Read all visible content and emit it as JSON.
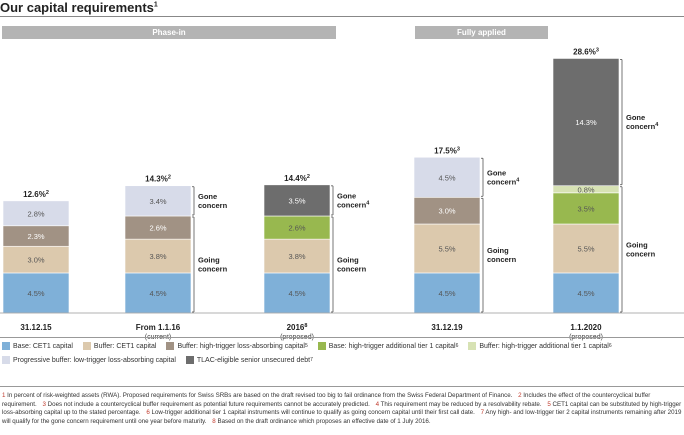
{
  "page": {
    "title": "Our capital requirements",
    "title_sup": "1"
  },
  "headers": {
    "phase_in": "Phase-in",
    "fully_applied": "Fully applied"
  },
  "chart_data": {
    "type": "bar",
    "stacked": true,
    "unit": "% of RWA",
    "categories": [
      "31.12.15",
      "From 1.1.16",
      "2016",
      "31.12.19",
      "1.1.2020"
    ],
    "category_sublabels": [
      "",
      "(current)",
      "(proposed)",
      "",
      "(proposed)"
    ],
    "category_sups": [
      "",
      "",
      "8",
      "",
      ""
    ],
    "totals": [
      {
        "label": "12.6%",
        "sup": "2"
      },
      {
        "label": "14.3%",
        "sup": "2"
      },
      {
        "label": "14.4%",
        "sup": "2"
      },
      {
        "label": "17.5%",
        "sup": "3"
      },
      {
        "label": "28.6%",
        "sup": "3"
      }
    ],
    "series": [
      {
        "name": "Base: CET1 capital",
        "color": "#7fb0d8",
        "values": [
          4.5,
          4.5,
          4.5,
          4.5,
          4.5
        ]
      },
      {
        "name": "Buffer: CET1 capital",
        "color": "#dcc9ad",
        "values": [
          3.0,
          3.8,
          3.8,
          5.5,
          5.5
        ]
      },
      {
        "name": "Buffer: high-trigger loss-absorbing capital",
        "sup": "5",
        "color": "#a19284",
        "values": [
          2.3,
          2.6,
          0,
          3.0,
          0
        ]
      },
      {
        "name": "Base: high-trigger additional tier 1 capital",
        "sup": "6",
        "color": "#98b84f",
        "values": [
          0,
          0,
          2.6,
          0,
          3.5
        ]
      },
      {
        "name": "Buffer: high-trigger additional tier 1 capital",
        "sup": "6",
        "color": "#d7e2b4",
        "values": [
          0,
          0,
          0,
          0,
          0.8
        ]
      },
      {
        "name": "Progressive buffer: low-trigger loss-absorbing capital",
        "color": "#d7dbe9",
        "values": [
          2.8,
          3.4,
          0,
          4.5,
          0
        ]
      },
      {
        "name": "TLAC-eligible senior unsecured debt",
        "sup": "7",
        "color": "#6d6d6d",
        "values": [
          0,
          0,
          3.5,
          0,
          14.3
        ]
      }
    ],
    "brackets": [
      {
        "bar": 1,
        "label": "Gone\nconcern",
        "sup": ""
      },
      {
        "bar": 1,
        "label": "Going\nconcern",
        "sup": ""
      },
      {
        "bar": 2,
        "label": "Gone\nconcern",
        "sup": "4"
      },
      {
        "bar": 2,
        "label": "Going\nconcern",
        "sup": ""
      },
      {
        "bar": 3,
        "label": "Gone\nconcern",
        "sup": "4"
      },
      {
        "bar": 3,
        "label": "Going\nconcern",
        "sup": ""
      },
      {
        "bar": 4,
        "label": "Gone\nconcern",
        "sup": "4"
      },
      {
        "bar": 4,
        "label": "Going\nconcern",
        "sup": ""
      }
    ]
  },
  "footnotes": [
    {
      "num": "1",
      "text": "In percent of risk-weighted assets (RWA). Proposed requirements for Swiss SRBs are based on the draft revised too big to fail ordinance from the Swiss Federal Department of Finance."
    },
    {
      "num": "2",
      "text": "Includes the effect of the countercyclical buffer requirement."
    },
    {
      "num": "3",
      "text": "Does not include a countercyclical buffer requirement as potential future requirements cannot be accurately predicted."
    },
    {
      "num": "4",
      "text": "This requirement may be reduced by a resolvability rebate."
    },
    {
      "num": "5",
      "text": "CET1 capital can be substituted by high-trigger loss-absorbing capital up to the stated percentage."
    },
    {
      "num": "6",
      "text": "Low-trigger additional tier 1 capital instruments will continue to qualify as going concern capital until their first call date."
    },
    {
      "num": "7",
      "text": "Any high- and low-trigger tier 2 capital instruments remaining after 2019 will qualify for the gone concern requirement until one year before maturity."
    },
    {
      "num": "8",
      "text": "Based on the draft ordinance which proposes an effective date of 1 July 2016."
    }
  ]
}
